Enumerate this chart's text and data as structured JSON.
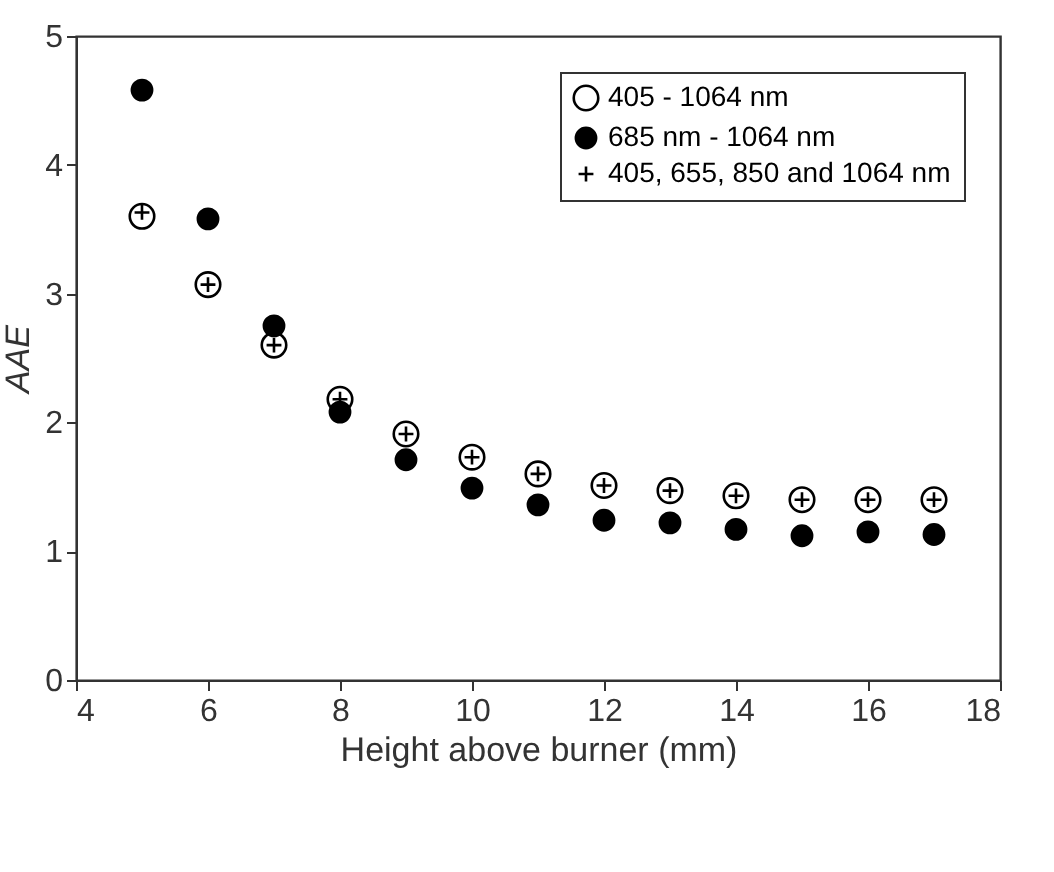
{
  "chart_data": {
    "type": "scatter",
    "xlabel": "Height above burner (mm)",
    "ylabel": "AAE",
    "x": [
      5,
      6,
      7,
      8,
      9,
      10,
      11,
      12,
      13,
      14,
      15,
      16,
      17
    ],
    "xlim": [
      4,
      18
    ],
    "xticks": [
      4,
      6,
      8,
      10,
      12,
      14,
      16,
      18
    ],
    "ylim": [
      0,
      5
    ],
    "yticks": [
      0,
      1,
      2,
      3,
      4,
      5
    ],
    "legend": "top right",
    "series": [
      {
        "name": "405 - 1064 nm",
        "color": "#000000",
        "marker": "circle",
        "values": [
          3.6,
          3.07,
          2.6,
          2.18,
          1.91,
          1.73,
          1.6,
          1.51,
          1.47,
          1.43,
          1.4,
          1.4,
          1.4
        ]
      },
      {
        "name": "685 nm - 1064 nm",
        "color": "#000000",
        "marker": "circle",
        "values": [
          4.58,
          3.58,
          2.75,
          2.08,
          1.71,
          1.49,
          1.36,
          1.24,
          1.22,
          1.17,
          1.12,
          1.15,
          1.13
        ]
      },
      {
        "name": "405, 655, 850 and 1064 nm",
        "color": "#000000",
        "marker": "cross",
        "values": [
          3.63,
          3.07,
          2.6,
          2.18,
          1.91,
          1.73,
          1.6,
          1.51,
          1.47,
          1.43,
          1.4,
          1.4,
          1.4
        ]
      }
    ]
  }
}
